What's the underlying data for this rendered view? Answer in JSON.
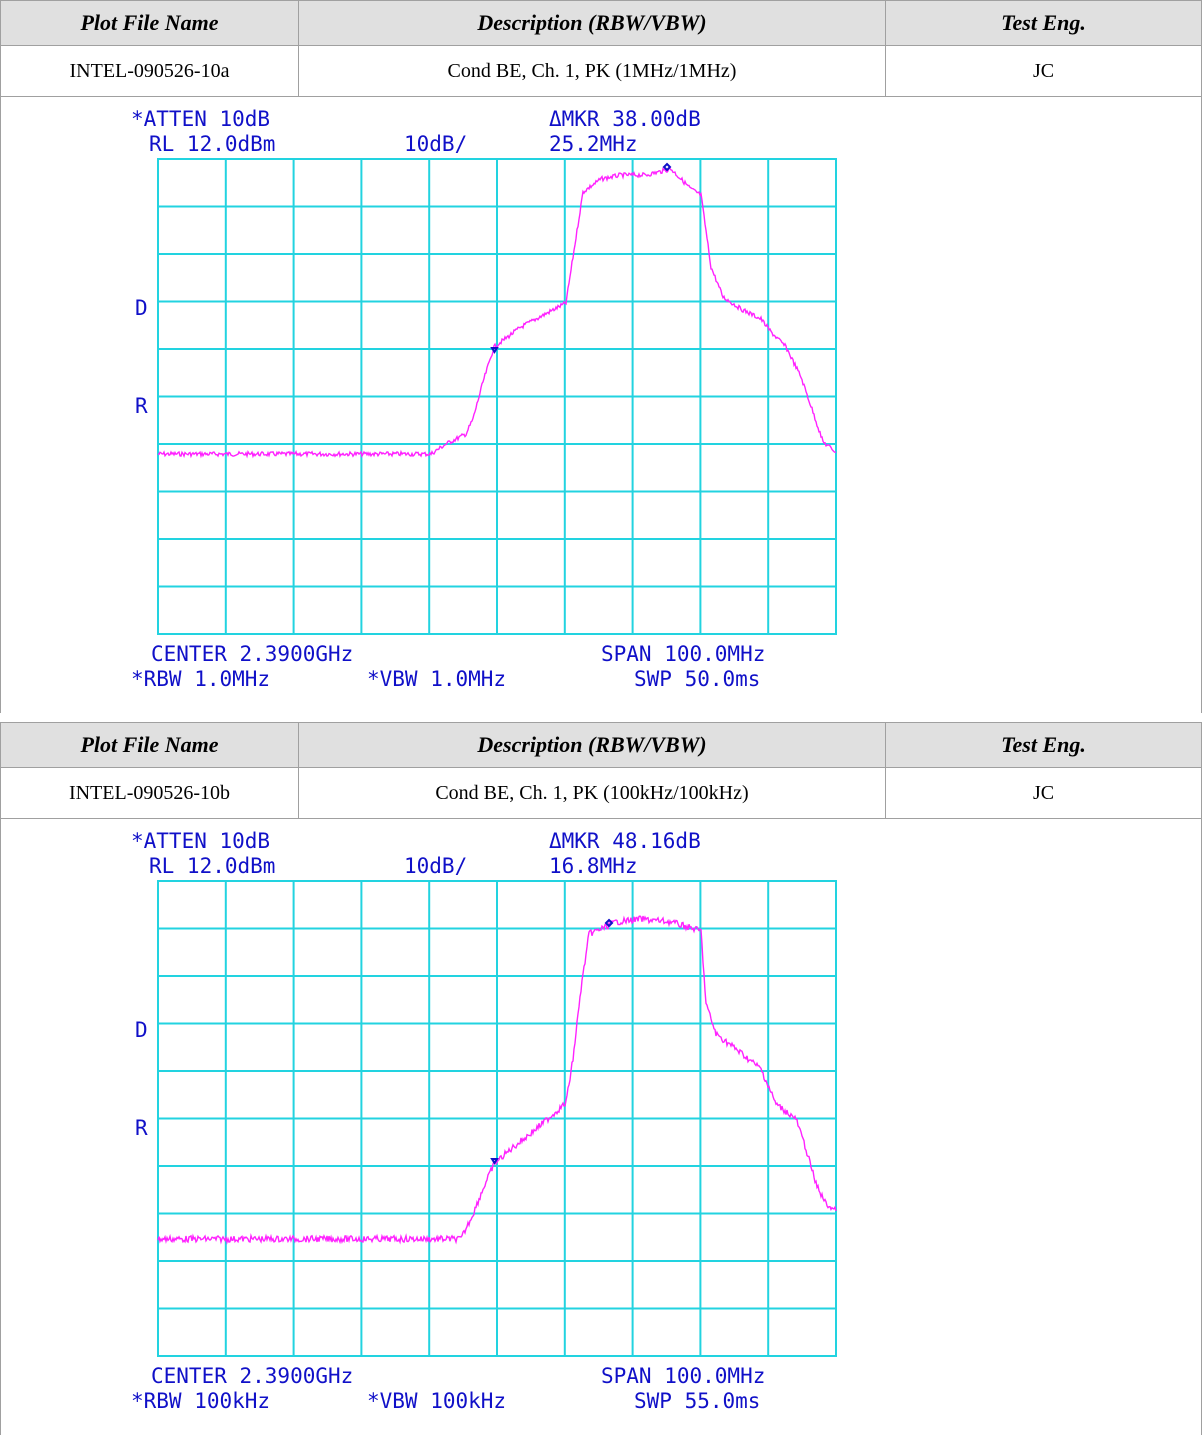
{
  "table_header": {
    "col1": "Plot File Name",
    "col2": "Description (RBW/VBW)",
    "col3": "Test Eng."
  },
  "entries": [
    {
      "file": "INTEL-090526-10a",
      "desc": "Cond BE, Ch. 1, PK (1MHz/1MHz)",
      "eng": "JC",
      "plot": {
        "atten": "*ATTEN 10dB",
        "rl": "RL 12.0dBm",
        "scale": "10dB/",
        "mkr": "ΔMKR 38.00dB",
        "mkr_freq": "25.2MHz",
        "d_label": "D",
        "r_label": "R",
        "center": "CENTER 2.3900GHz",
        "span": "SPAN 100.0MHz",
        "rbw": "*RBW 1.0MHz",
        "vbw": "*VBW 1.0MHz",
        "swp": "SWP 50.0ms"
      }
    },
    {
      "file": "INTEL-090526-10b",
      "desc": "Cond BE, Ch. 1, PK (100kHz/100kHz)",
      "eng": "JC",
      "plot": {
        "atten": "*ATTEN 10dB",
        "rl": "RL 12.0dBm",
        "scale": "10dB/",
        "mkr": "ΔMKR 48.16dB",
        "mkr_freq": "16.8MHz",
        "d_label": "D",
        "r_label": "R",
        "center": "CENTER 2.3900GHz",
        "span": "SPAN 100.0MHz",
        "rbw": "*RBW 100kHz",
        "vbw": "*VBW 100kHz",
        "swp": "SWP 55.0ms"
      }
    }
  ],
  "colors": {
    "grid": "#22d3e0",
    "trace": "#ff22ff",
    "text": "#1010c8"
  }
}
